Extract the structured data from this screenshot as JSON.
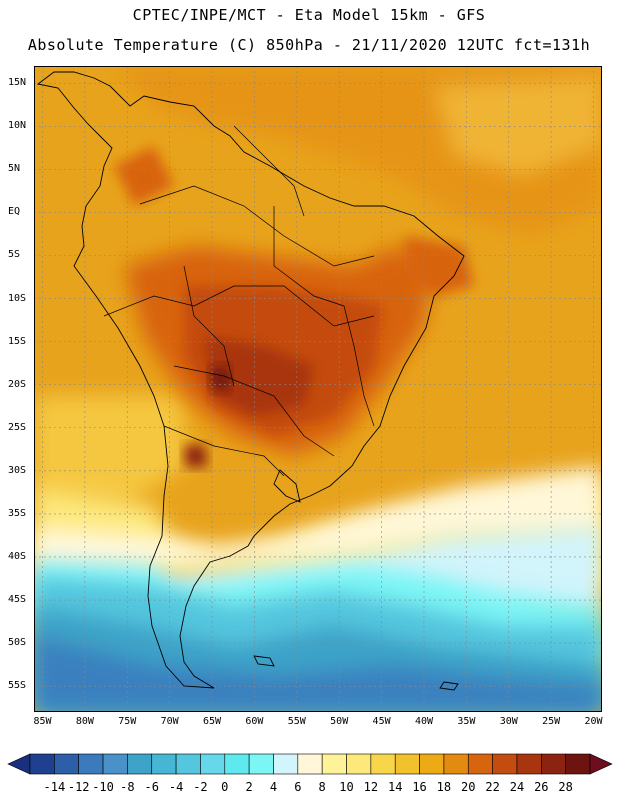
{
  "header": {
    "line1": "CPTEC/INPE/MCT -  Eta Model 15km - GFS",
    "line2": "Absolute Temperature (C) 850hPa - 21/11/2020 12UTC fct=131h"
  },
  "map": {
    "lat_labels": [
      "15N",
      "10N",
      "5N",
      "EQ",
      "5S",
      "10S",
      "15S",
      "20S",
      "25S",
      "30S",
      "35S",
      "40S",
      "45S",
      "50S",
      "55S"
    ],
    "lat_values": [
      15,
      10,
      5,
      0,
      -5,
      -10,
      -15,
      -20,
      -25,
      -30,
      -35,
      -40,
      -45,
      -50,
      -55
    ],
    "lon_labels": [
      "85W",
      "80W",
      "75W",
      "70W",
      "65W",
      "60W",
      "55W",
      "50W",
      "45W",
      "40W",
      "35W",
      "30W",
      "25W",
      "20W"
    ],
    "lon_values": [
      -85,
      -80,
      -75,
      -70,
      -65,
      -60,
      -55,
      -50,
      -45,
      -40,
      -35,
      -30,
      -25,
      -20
    ],
    "extent": {
      "lon_min": -86,
      "lon_max": -19,
      "lat_min": -58,
      "lat_max": 17
    },
    "ocean_color": "#e8a31c",
    "land_color": "#e08e1e"
  },
  "colorbar": {
    "labels": [
      "-14",
      "-12",
      "-10",
      "-8",
      "-6",
      "-4",
      "-2",
      "0",
      "2",
      "4",
      "6",
      "8",
      "10",
      "12",
      "14",
      "16",
      "18",
      "20",
      "22",
      "24",
      "26",
      "28"
    ],
    "colors": [
      "#1f3f8f",
      "#2c5fa8",
      "#3a7abd",
      "#4a91c9",
      "#3ea3c8",
      "#46b6d4",
      "#54c6de",
      "#66d8ea",
      "#5ee9ee",
      "#7cf5f5",
      "#d2f4fb",
      "#fff7d8",
      "#fff39a",
      "#fde87a",
      "#f8d64a",
      "#f2c22e",
      "#eeaa14",
      "#e38a10",
      "#d86410",
      "#c44c10",
      "#a83410",
      "#8c2210",
      "#6e1410"
    ],
    "left_arrow": "#1a2f7f",
    "right_arrow": "#6e0d1e"
  }
}
